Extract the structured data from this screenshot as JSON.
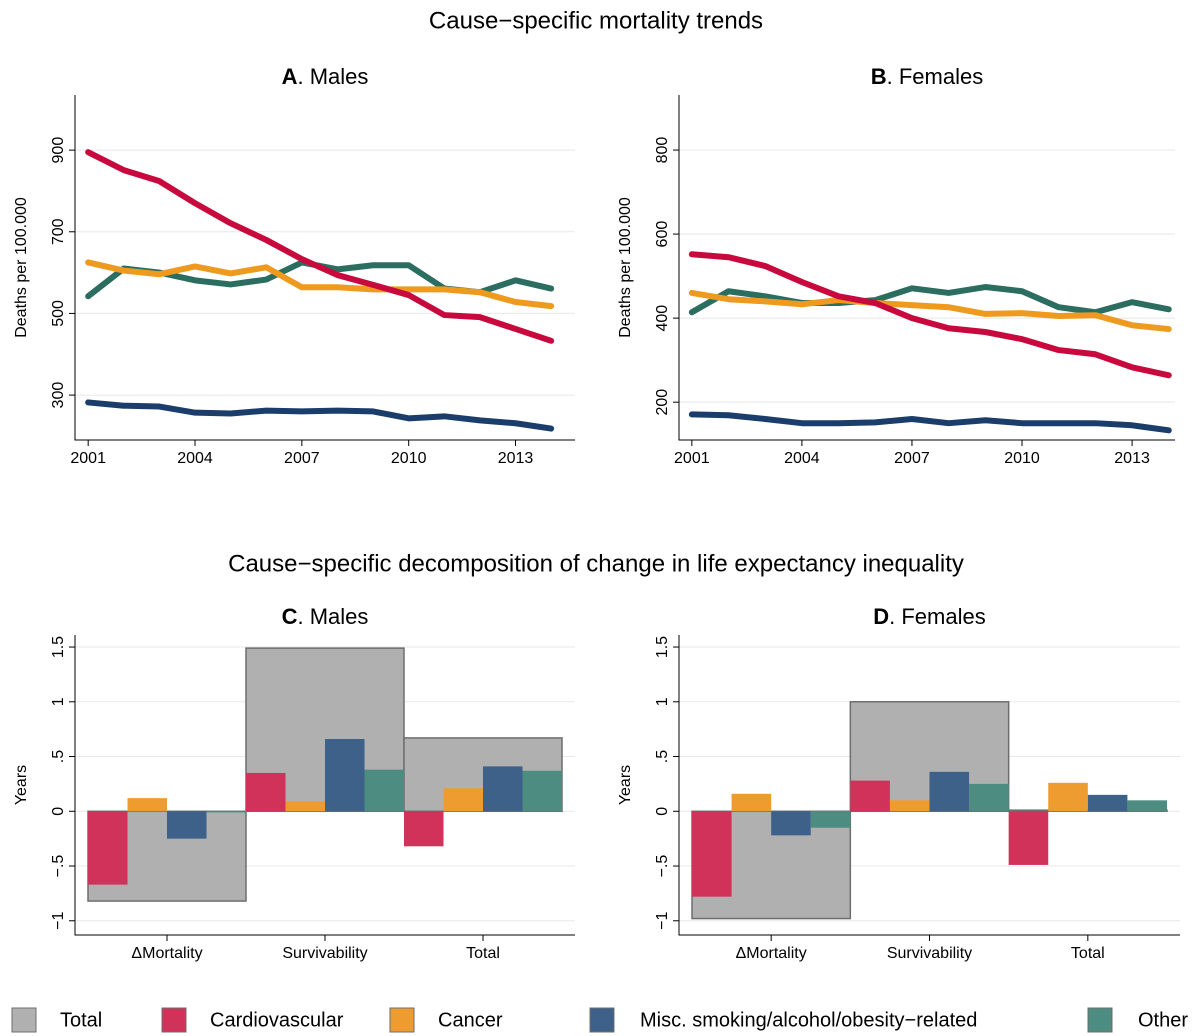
{
  "titles": [
    "Cause−specific mortality trends",
    "Cause−specific decomposition of change in life expectancy inequality"
  ],
  "chart_data": [
    {
      "type": "line",
      "title": "A. Males",
      "ylabel": "Deaths per 100.000",
      "x": [
        2001,
        2002,
        2003,
        2004,
        2005,
        2006,
        2007,
        2008,
        2009,
        2010,
        2011,
        2012,
        2013,
        2014
      ],
      "xlim": [
        2000.63,
        2014.67
      ],
      "xticks": [
        2001,
        2004,
        2007,
        2010,
        2013
      ],
      "ylim": [
        190,
        1035
      ],
      "yticks": [
        300,
        500,
        700,
        900
      ],
      "grid": true,
      "series": [
        {
          "color": "#1b3d6b",
          "values": [
            282,
            274,
            272,
            257,
            255,
            262,
            260,
            262,
            260,
            243,
            248,
            238,
            231,
            218
          ]
        },
        {
          "color": "#2b6d5f",
          "values": [
            542,
            610,
            600,
            581,
            571,
            583,
            625,
            608,
            618,
            618,
            561,
            552,
            581,
            561
          ]
        },
        {
          "color": "#ee9a1f",
          "values": [
            625,
            605,
            596,
            615,
            598,
            613,
            564,
            564,
            559,
            559,
            559,
            552,
            528,
            518
          ]
        },
        {
          "color": "#c8093d",
          "values": [
            895,
            851,
            824,
            770,
            721,
            680,
            633,
            594,
            570,
            545,
            496,
            491,
            462,
            433
          ]
        }
      ]
    },
    {
      "type": "line",
      "title": "B. Females",
      "ylabel": "Deaths per 100.000",
      "x": [
        2001,
        2002,
        2003,
        2004,
        2005,
        2006,
        2007,
        2008,
        2009,
        2010,
        2011,
        2012,
        2013,
        2014
      ],
      "xlim": [
        2000.65,
        2014.17
      ],
      "xticks": [
        2001,
        2004,
        2007,
        2010,
        2013
      ],
      "ylim": [
        110,
        931
      ],
      "yticks": [
        200,
        400,
        600,
        800
      ],
      "grid": true,
      "series": [
        {
          "color": "#1b3d6b",
          "values": [
            171,
            169,
            160,
            150,
            150,
            152,
            160,
            150,
            157,
            150,
            150,
            150,
            145,
            133
          ]
        },
        {
          "color": "#2b6d5f",
          "values": [
            414,
            464,
            452,
            436,
            436,
            443,
            471,
            460,
            474,
            464,
            426,
            414,
            438,
            421
          ]
        },
        {
          "color": "#ee9a1f",
          "values": [
            460,
            445,
            440,
            433,
            443,
            436,
            431,
            426,
            410,
            412,
            405,
            407,
            383,
            374
          ]
        },
        {
          "color": "#c8093d",
          "values": [
            552,
            545,
            524,
            486,
            452,
            436,
            400,
            376,
            367,
            350,
            324,
            314,
            283,
            264
          ]
        }
      ]
    },
    {
      "type": "bar",
      "title": "C. Males",
      "ylabel": "Years",
      "categories": [
        "ΔMortality",
        "Survivability",
        "Total"
      ],
      "ylim": [
        -1.13,
        1.61
      ],
      "yticks": [
        {
          "value": -1,
          "label": "−1"
        },
        {
          "value": -0.5,
          "label": "−.5"
        },
        0,
        {
          "value": 0.5,
          "label": ".5"
        },
        1,
        1.5
      ],
      "grid": true,
      "series": [
        {
          "name": "Total",
          "color": "#b0b0b0",
          "values": [
            -0.82,
            1.49,
            0.67
          ]
        },
        {
          "name": "Cardiovascular",
          "color": "#d0325a",
          "values": [
            -0.67,
            0.35,
            -0.32
          ]
        },
        {
          "name": "Cancer",
          "color": "#ee9c30",
          "values": [
            0.12,
            0.09,
            0.21
          ]
        },
        {
          "name": "Misc. smoking/alcohol/obesity−related",
          "color": "#3d6189",
          "values": [
            -0.25,
            0.66,
            0.41
          ]
        },
        {
          "name": "Other",
          "color": "#4d8c80",
          "values": [
            -0.01,
            0.38,
            0.37
          ]
        }
      ]
    },
    {
      "type": "bar",
      "title": "D. Females",
      "ylabel": "Years",
      "categories": [
        "ΔMortality",
        "Survivability",
        "Total"
      ],
      "ylim": [
        -1.13,
        1.61
      ],
      "yticks": [
        {
          "value": -1,
          "label": "−1"
        },
        {
          "value": -0.5,
          "label": "−.5"
        },
        0,
        {
          "value": 0.5,
          "label": ".5"
        },
        1,
        1.5
      ],
      "grid": true,
      "series": [
        {
          "color": "#b0b0b0",
          "values": [
            -0.98,
            1.0,
            0.01
          ]
        },
        {
          "color": "#d0325a",
          "values": [
            -0.78,
            0.28,
            -0.49
          ]
        },
        {
          "color": "#ee9c30",
          "values": [
            0.16,
            0.1,
            0.26
          ]
        },
        {
          "color": "#3d6189",
          "values": [
            -0.22,
            0.36,
            0.15
          ]
        },
        {
          "color": "#4d8c80",
          "values": [
            -0.15,
            0.25,
            0.1
          ]
        }
      ]
    }
  ]
}
